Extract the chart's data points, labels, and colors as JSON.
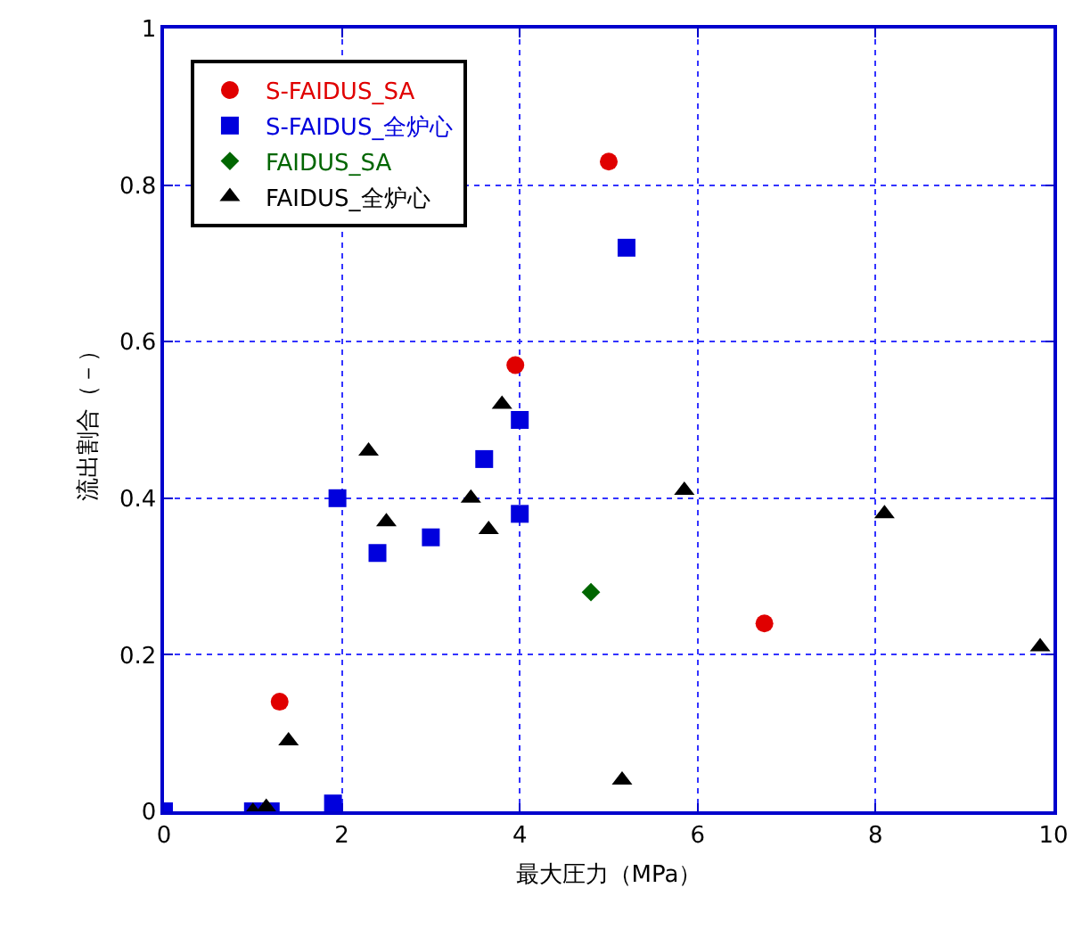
{
  "chart_data": {
    "type": "scatter",
    "xlabel": "最大圧力（MPa）",
    "ylabel": "流出割合（－）",
    "xlim": [
      0,
      10
    ],
    "xticks": [
      0,
      2,
      4,
      6,
      8,
      10
    ],
    "ylim": [
      0,
      1
    ],
    "yticks": [
      0,
      0.2,
      0.4,
      0.6,
      0.8,
      1
    ],
    "grid": true,
    "legend": "top left",
    "series": [
      {
        "name": "S-FAIDUS_SA",
        "color": "#e00000",
        "marker": "circle",
        "x": [
          1.3,
          3.95,
          5.0,
          6.75
        ],
        "values": [
          0.14,
          0.57,
          0.83,
          0.24
        ]
      },
      {
        "name": "S-FAIDUS_全炉心",
        "color": "#0000dd",
        "marker": "square",
        "x": [
          0,
          1.0,
          1.2,
          1.9,
          1.95,
          2.4,
          3.0,
          3.6,
          4.0,
          4.0,
          5.2
        ],
        "values": [
          0,
          0,
          0,
          0.01,
          0.4,
          0.33,
          0.35,
          0.45,
          0.5,
          0.38,
          0.72
        ]
      },
      {
        "name": "FAIDUS_SA",
        "color": "#006600",
        "marker": "diamond",
        "x": [
          4.8
        ],
        "values": [
          0.28
        ]
      },
      {
        "name": "FAIDUS_全炉心",
        "color": "#000000",
        "marker": "triangle",
        "x": [
          1.0,
          1.15,
          1.4,
          2.3,
          2.5,
          3.45,
          3.65,
          3.8,
          5.15,
          5.85,
          8.1,
          9.85
        ],
        "values": [
          0,
          0.005,
          0.09,
          0.46,
          0.37,
          0.4,
          0.36,
          0.52,
          0.04,
          0.41,
          0.38,
          0.21
        ]
      }
    ]
  }
}
